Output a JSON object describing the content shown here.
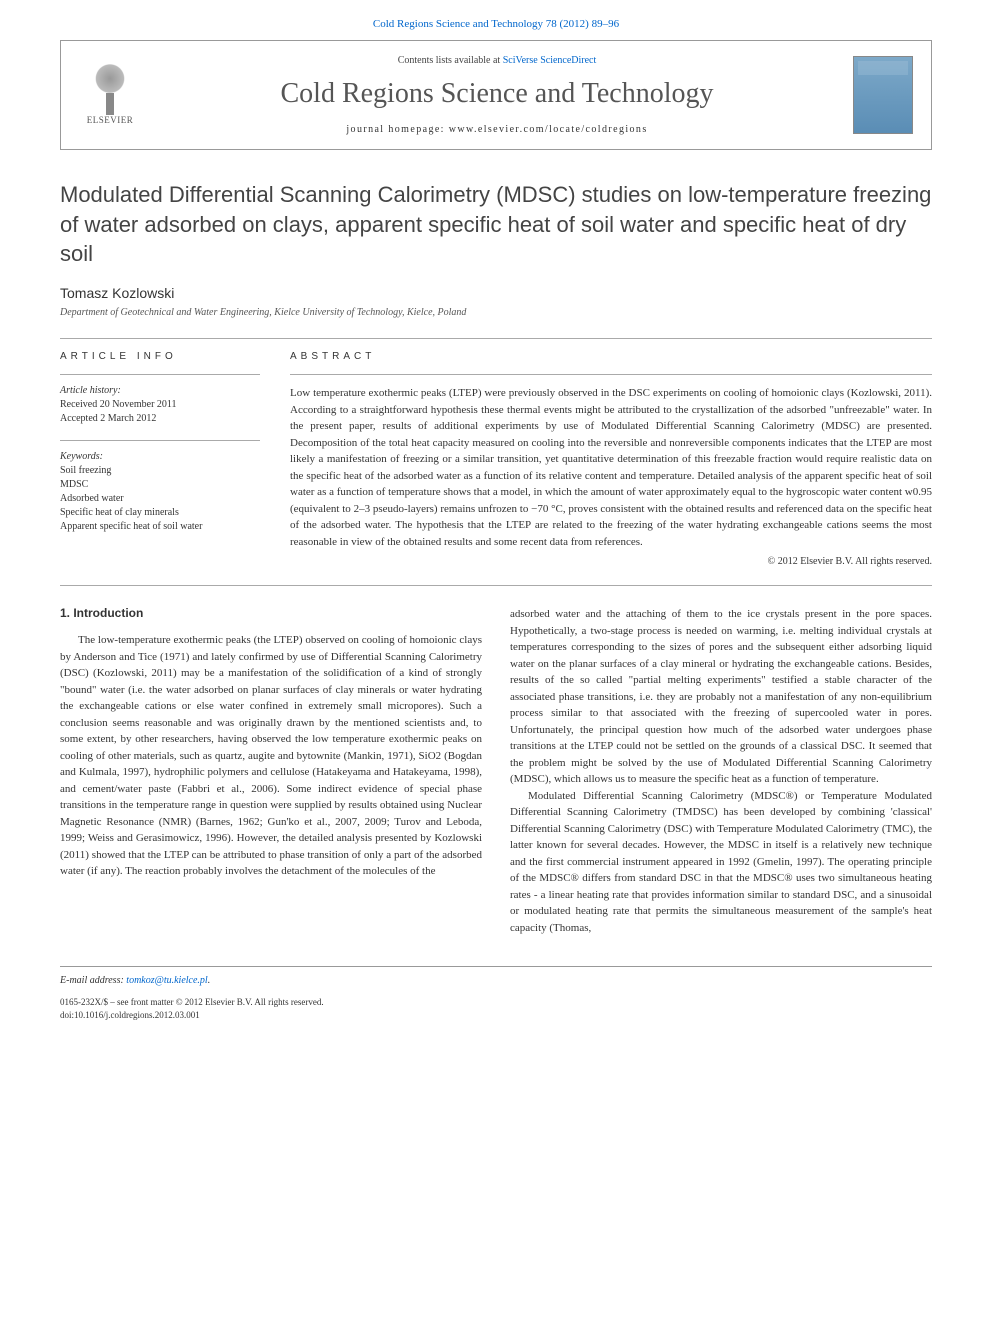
{
  "top_link": {
    "journal": "Cold Regions Science and Technology",
    "vol_pages": "78 (2012) 89–96"
  },
  "header": {
    "contents_prefix": "Contents lists available at",
    "contents_link": "SciVerse ScienceDirect",
    "journal_name": "Cold Regions Science and Technology",
    "homepage_label": "journal homepage: www.elsevier.com/locate/coldregions",
    "elsevier_label": "ELSEVIER"
  },
  "title": "Modulated Differential Scanning Calorimetry (MDSC) studies on low-temperature freezing of water adsorbed on clays, apparent specific heat of soil water and specific heat of dry soil",
  "author": "Tomasz Kozlowski",
  "affiliation": "Department of Geotechnical and Water Engineering, Kielce University of Technology, Kielce, Poland",
  "article_info": {
    "head": "ARTICLE INFO",
    "history_label": "Article history:",
    "received": "Received 20 November 2011",
    "accepted": "Accepted 2 March 2012",
    "keywords_label": "Keywords:",
    "keywords": [
      "Soil freezing",
      "MDSC",
      "Adsorbed water",
      "Specific heat of clay minerals",
      "Apparent specific heat of soil water"
    ]
  },
  "abstract": {
    "head": "ABSTRACT",
    "text": "Low temperature exothermic peaks (LTEP) were previously observed in the DSC experiments on cooling of homoionic clays (Kozlowski, 2011). According to a straightforward hypothesis these thermal events might be attributed to the crystallization of the adsorbed \"unfreezable\" water. In the present paper, results of additional experiments by use of Modulated Differential Scanning Calorimetry (MDSC) are presented. Decomposition of the total heat capacity measured on cooling into the reversible and nonreversible components indicates that the LTEP are most likely a manifestation of freezing or a similar transition, yet quantitative determination of this freezable fraction would require realistic data on the specific heat of the adsorbed water as a function of its relative content and temperature. Detailed analysis of the apparent specific heat of soil water as a function of temperature shows that a model, in which the amount of water approximately equal to the hygroscopic water content w0.95 (equivalent to 2–3 pseudo-layers) remains unfrozen to −70 °C, proves consistent with the obtained results and referenced data on the specific heat of the adsorbed water. The hypothesis that the LTEP are related to the freezing of the water hydrating exchangeable cations seems the most reasonable in view of the obtained results and some recent data from references.",
    "copyright": "© 2012 Elsevier B.V. All rights reserved."
  },
  "intro": {
    "head": "1. Introduction",
    "col1": "The low-temperature exothermic peaks (the LTEP) observed on cooling of homoionic clays by Anderson and Tice (1971) and lately confirmed by use of Differential Scanning Calorimetry (DSC) (Kozlowski, 2011) may be a manifestation of the solidification of a kind of strongly \"bound\" water (i.e. the water adsorbed on planar surfaces of clay minerals or water hydrating the exchangeable cations or else water confined in extremely small micropores). Such a conclusion seems reasonable and was originally drawn by the mentioned scientists and, to some extent, by other researchers, having observed the low temperature exothermic peaks on cooling of other materials, such as quartz, augite and bytownite (Mankin, 1971), SiO2 (Bogdan and Kulmala, 1997), hydrophilic polymers and cellulose (Hatakeyama and Hatakeyama, 1998), and cement/water paste (Fabbri et al., 2006). Some indirect evidence of special phase transitions in the temperature range in question were supplied by results obtained using Nuclear Magnetic Resonance (NMR) (Barnes, 1962; Gun'ko et al., 2007, 2009; Turov and Leboda, 1999; Weiss and Gerasimowicz, 1996). However, the detailed analysis presented by Kozlowski (2011) showed that the LTEP can be attributed to phase transition of only a part of the adsorbed water (if any). The reaction probably involves the detachment of the molecules of the",
    "col2": "adsorbed water and the attaching of them to the ice crystals present in the pore spaces. Hypothetically, a two-stage process is needed on warming, i.e. melting individual crystals at temperatures corresponding to the sizes of pores and the subsequent either adsorbing liquid water on the planar surfaces of a clay mineral or hydrating the exchangeable cations. Besides, results of the so called \"partial melting experiments\" testified a stable character of the associated phase transitions, i.e. they are probably not a manifestation of any non-equilibrium process similar to that associated with the freezing of supercooled water in pores. Unfortunately, the principal question how much of the adsorbed water undergoes phase transitions at the LTEP could not be settled on the grounds of a classical DSC. It seemed that the problem might be solved by the use of Modulated Differential Scanning Calorimetry (MDSC), which allows us to measure the specific heat as a function of temperature.",
    "col2b": "Modulated Differential Scanning Calorimetry (MDSC®) or Temperature Modulated Differential Scanning Calorimetry (TMDSC) has been developed by combining 'classical' Differential Scanning Calorimetry (DSC) with Temperature Modulated Calorimetry (TMC), the latter known for several decades. However, the MDSC in itself is a relatively new technique and the first commercial instrument appeared in 1992 (Gmelin, 1997). The operating principle of the MDSC® differs from standard DSC in that the MDSC® uses two simultaneous heating rates - a linear heating rate that provides information similar to standard DSC, and a sinusoidal or modulated heating rate that permits the simultaneous measurement of the sample's heat capacity (Thomas,"
  },
  "footer": {
    "email_label": "E-mail address:",
    "email": "tomkoz@tu.kielce.pl",
    "issn": "0165-232X/$ – see front matter © 2012 Elsevier B.V. All rights reserved.",
    "doi": "doi:10.1016/j.coldregions.2012.03.001"
  },
  "colors": {
    "link": "#0066cc",
    "text": "#333333",
    "rule": "#aaaaaa"
  }
}
